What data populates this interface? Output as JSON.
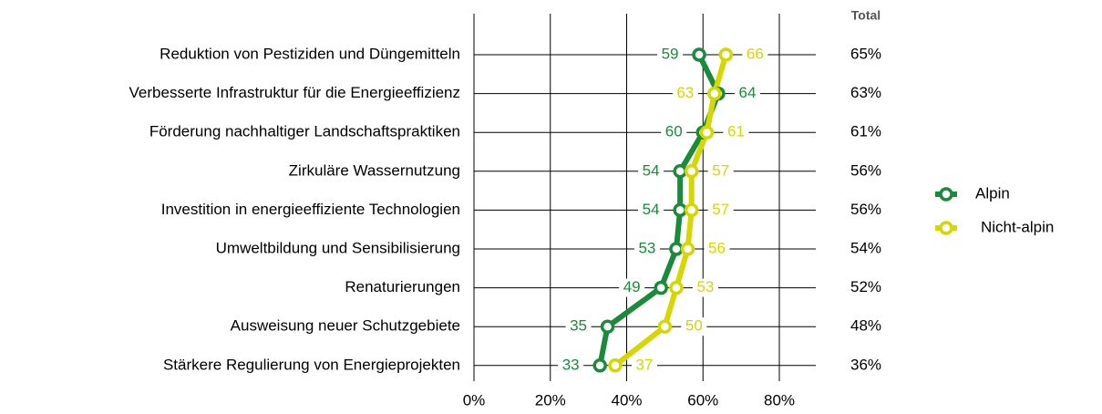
{
  "chart_data": {
    "type": "dot-line",
    "categories": [
      "Reduktion von Pestiziden und Düngemitteln",
      "Verbesserte Infrastruktur für die Energieeffizienz",
      "Förderung nachhaltiger Landschaftspraktiken",
      "Zirkuläre Wassernutzung",
      "Investition in energieeffiziente Technologien",
      "Umweltbildung und Sensibilisierung",
      "Renaturierungen",
      "Ausweisung neuer Schutzgebiete",
      "Stärkere Regulierung von Energieprojekten"
    ],
    "series": [
      {
        "name": "Alpin",
        "color": "#1b8a3a",
        "values": [
          59,
          64,
          60,
          54,
          54,
          53,
          49,
          35,
          33
        ]
      },
      {
        "name": "Nicht-alpin",
        "color": "#d6d600",
        "values": [
          66,
          63,
          61,
          57,
          57,
          56,
          53,
          50,
          37
        ]
      }
    ],
    "total": {
      "title": "Total",
      "values": [
        65,
        63,
        61,
        56,
        56,
        54,
        52,
        48,
        36
      ],
      "value_labels": [
        "65%",
        "63%",
        "61%",
        "56%",
        "56%",
        "54%",
        "52%",
        "48%",
        "36%"
      ]
    },
    "xlim": [
      0,
      80
    ],
    "xticks": [
      {
        "value": 0,
        "label": "0%"
      },
      {
        "value": 20,
        "label": "20%"
      },
      {
        "value": 40,
        "label": "40%"
      },
      {
        "value": 60,
        "label": "60%"
      },
      {
        "value": 80,
        "label": "80%"
      }
    ],
    "grid": true,
    "legend": "right"
  }
}
